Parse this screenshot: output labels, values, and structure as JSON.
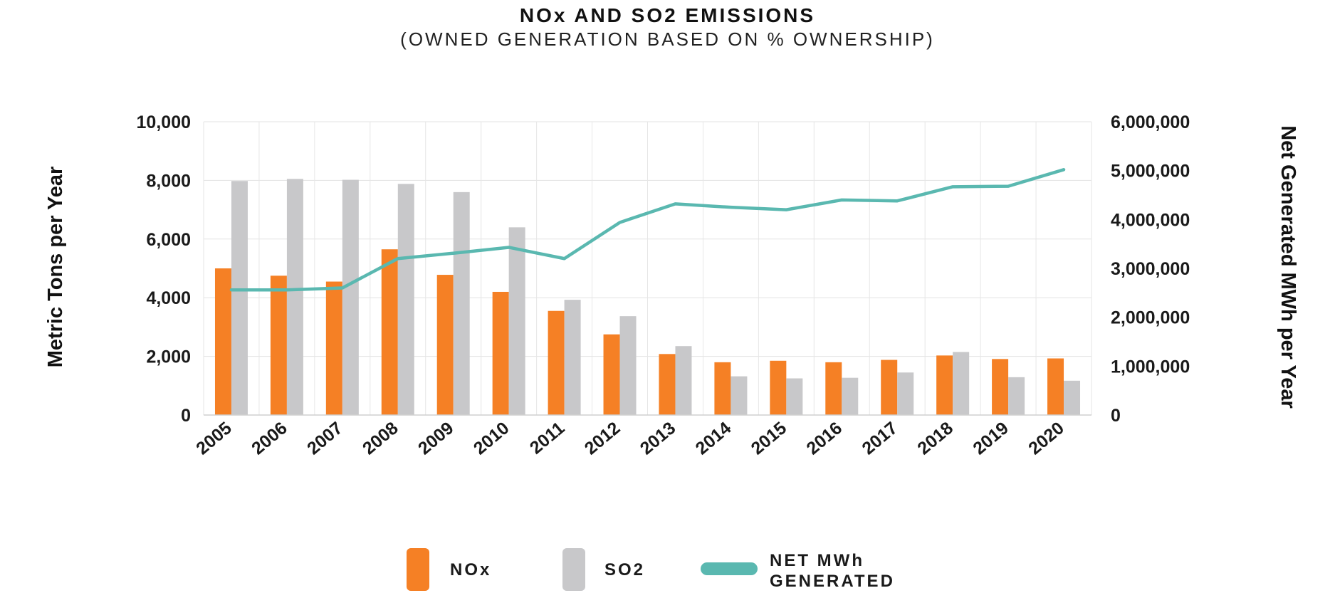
{
  "chart_data": {
    "type": "bar",
    "title": "NOx AND SO2 EMISSIONS",
    "subtitle": "(OWNED GENERATION BASED ON % OWNERSHIP)",
    "categories": [
      "2005",
      "2006",
      "2007",
      "2008",
      "2009",
      "2010",
      "2011",
      "2012",
      "2013",
      "2014",
      "2015",
      "2016",
      "2017",
      "2018",
      "2019",
      "2020"
    ],
    "series": [
      {
        "name": "NOx",
        "type": "bar",
        "axis": "left",
        "color": "#F58025",
        "values": [
          5000,
          4750,
          4550,
          5650,
          4780,
          4200,
          3550,
          2750,
          2080,
          1800,
          1850,
          1800,
          1880,
          2030,
          1910,
          1930
        ]
      },
      {
        "name": "SO2",
        "type": "bar",
        "axis": "left",
        "color": "#C8C8CA",
        "values": [
          7980,
          8050,
          8020,
          7880,
          7600,
          6400,
          3930,
          3370,
          2350,
          1320,
          1250,
          1270,
          1450,
          2150,
          1290,
          1170
        ]
      },
      {
        "name": "NET MWh GENERATED",
        "type": "line",
        "axis": "right",
        "color": "#5AB8B0",
        "values": [
          2560000,
          2560000,
          2600000,
          3200000,
          3310000,
          3430000,
          3200000,
          3940000,
          4320000,
          4250000,
          4200000,
          4400000,
          4380000,
          4670000,
          4680000,
          5020000
        ]
      }
    ],
    "ylabel": "Metric Tons per Year",
    "y2label": "Net Generated MWh per Year",
    "ylim": [
      0,
      10000
    ],
    "y2lim": [
      0,
      6000000
    ],
    "yticks": [
      "0",
      "2,000",
      "4,000",
      "6,000",
      "8,000",
      "10,000"
    ],
    "y2ticks": [
      "0",
      "1,000,000",
      "2,000,000",
      "3,000,000",
      "4,000,000",
      "5,000,000",
      "6,000,000"
    ],
    "grid": true,
    "legend": {
      "position": "bottom",
      "items": [
        {
          "label": "NOx",
          "color": "#F58025",
          "shape": "bar"
        },
        {
          "label": "SO2",
          "color": "#C8C8CA",
          "shape": "bar"
        },
        {
          "label_line1": "NET MWh",
          "label_line2": "GENERATED",
          "color": "#5AB8B0",
          "shape": "line"
        }
      ]
    }
  }
}
